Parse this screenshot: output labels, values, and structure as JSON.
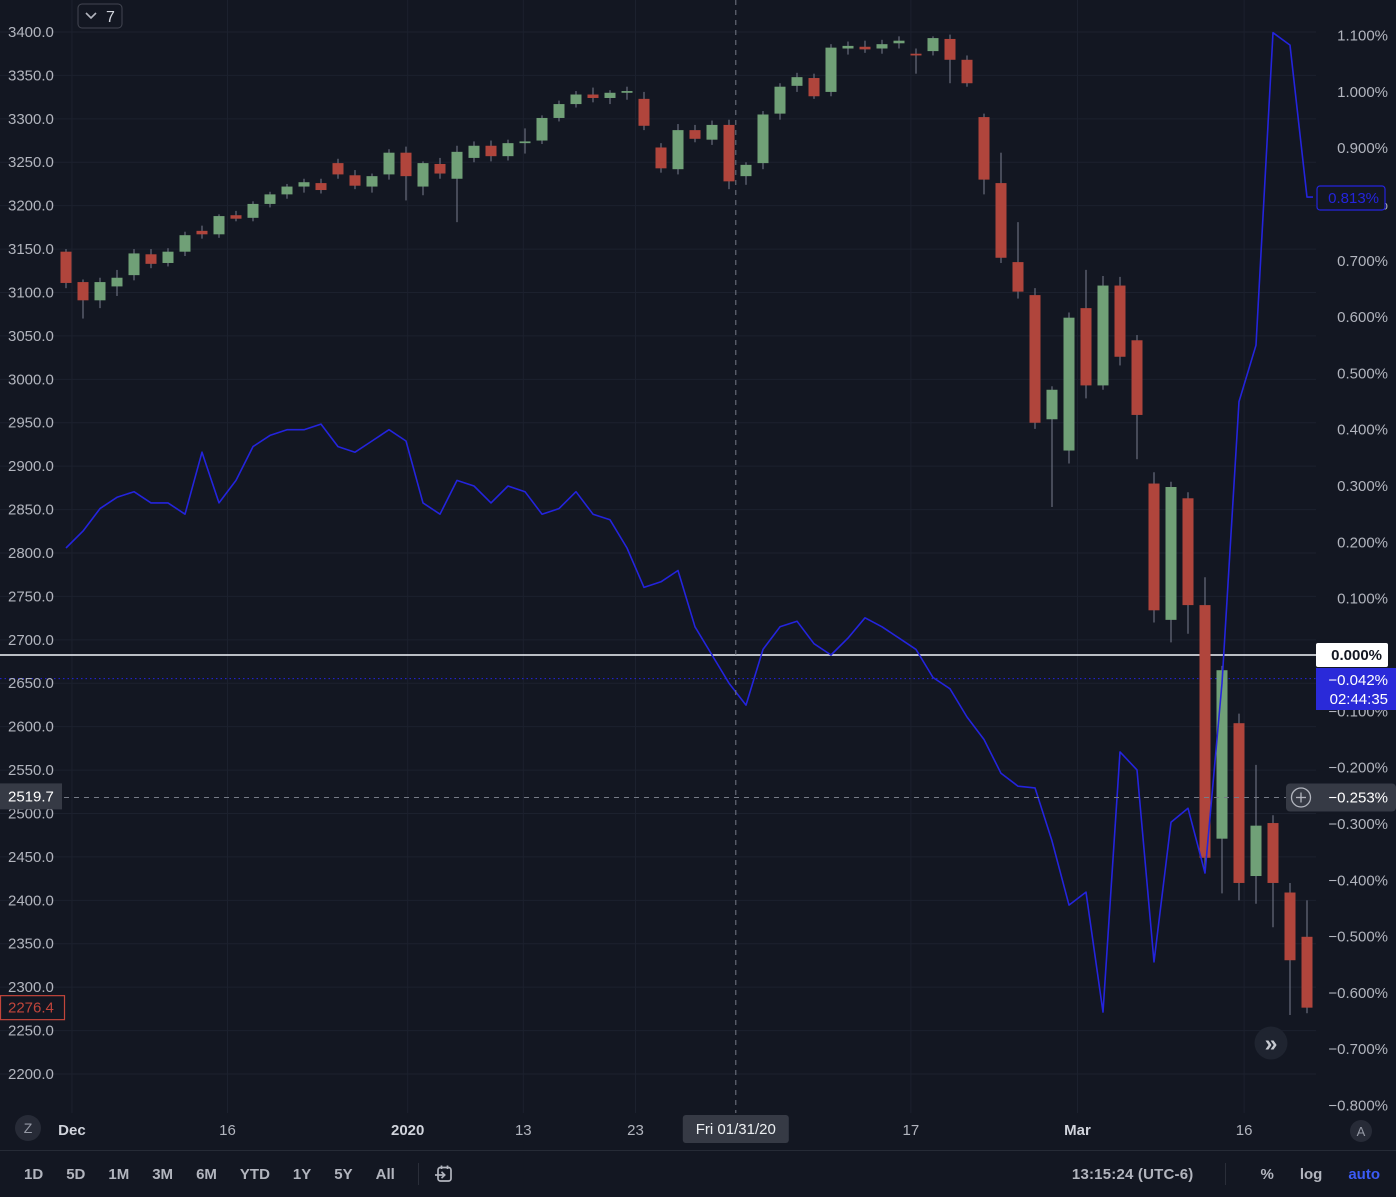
{
  "interval_button": {
    "value": "7"
  },
  "badges": {
    "left": "Z",
    "right": "A"
  },
  "toolbar": {
    "ranges": [
      "1D",
      "5D",
      "1M",
      "3M",
      "6M",
      "YTD",
      "1Y",
      "5Y",
      "All"
    ],
    "clock": "13:15:24 (UTC-6)",
    "percent_label": "%",
    "log_label": "log",
    "auto_label": "auto"
  },
  "chart_data": {
    "type": "candlestick+line",
    "title": "",
    "legend_position": "none",
    "grid": true,
    "price_axis": {
      "side": "left",
      "min": 2200,
      "max": 3400,
      "step": 50,
      "labels": [
        "3400.0",
        "3350.0",
        "3300.0",
        "3250.0",
        "3200.0",
        "3150.0",
        "3100.0",
        "3050.0",
        "3000.0",
        "2950.0",
        "2900.0",
        "2850.0",
        "2800.0",
        "2750.0",
        "2700.0",
        "2650.0",
        "2600.0",
        "2550.0",
        "2500.0",
        "2450.0",
        "2400.0",
        "2350.0",
        "2300.0",
        "2250.0",
        "2200.0"
      ]
    },
    "percent_axis": {
      "side": "right",
      "min": -0.8,
      "max": 1.1,
      "step": 0.1,
      "labels": [
        "1.100%",
        "1.000%",
        "0.900%",
        "0.800%",
        "0.700%",
        "0.600%",
        "0.500%",
        "0.400%",
        "0.300%",
        "0.200%",
        "0.100%",
        "0.000%",
        "−0.100%",
        "−0.200%",
        "−0.300%",
        "−0.400%",
        "−0.500%",
        "−0.600%",
        "−0.700%",
        "−0.800%"
      ]
    },
    "time_ticks": [
      {
        "label": "Dec",
        "index": 0.35,
        "emphasis": true
      },
      {
        "label": "16",
        "index": 9.5,
        "emphasis": false
      },
      {
        "label": "2020",
        "index": 20.1,
        "emphasis": true
      },
      {
        "label": "13",
        "index": 26.9,
        "emphasis": false
      },
      {
        "label": "23",
        "index": 33.5,
        "emphasis": false
      },
      {
        "label": "17",
        "index": 49.7,
        "emphasis": false
      },
      {
        "label": "Mar",
        "index": 59.5,
        "emphasis": true
      },
      {
        "label": "16",
        "index": 69.3,
        "emphasis": false
      }
    ],
    "candles": [
      [
        3147,
        3150,
        3105,
        3111
      ],
      [
        3112,
        3115,
        3070,
        3091
      ],
      [
        3091,
        3117,
        3082,
        3112
      ],
      [
        3107,
        3126,
        3096,
        3117
      ],
      [
        3120,
        3150,
        3114,
        3145
      ],
      [
        3144,
        3150,
        3128,
        3133
      ],
      [
        3134,
        3151,
        3130,
        3147
      ],
      [
        3147,
        3170,
        3142,
        3166
      ],
      [
        3171,
        3177,
        3162,
        3167
      ],
      [
        3167,
        3190,
        3163,
        3188
      ],
      [
        3189,
        3194,
        3182,
        3185
      ],
      [
        3186,
        3205,
        3182,
        3202
      ],
      [
        3202,
        3216,
        3198,
        3213
      ],
      [
        3213,
        3225,
        3208,
        3222
      ],
      [
        3222,
        3231,
        3215,
        3227
      ],
      [
        3226,
        3231,
        3214,
        3218
      ],
      [
        3249,
        3254,
        3231,
        3236
      ],
      [
        3235,
        3241,
        3219,
        3223
      ],
      [
        3222,
        3237,
        3215,
        3234
      ],
      [
        3236,
        3265,
        3230,
        3261
      ],
      [
        3261,
        3268,
        3206,
        3234
      ],
      [
        3222,
        3251,
        3212,
        3249
      ],
      [
        3248,
        3255,
        3231,
        3237
      ],
      [
        3231,
        3269,
        3181,
        3262
      ],
      [
        3255,
        3274,
        3250,
        3269
      ],
      [
        3269,
        3275,
        3251,
        3257
      ],
      [
        3257,
        3276,
        3252,
        3272
      ],
      [
        3272,
        3289,
        3260,
        3274
      ],
      [
        3275,
        3304,
        3271,
        3301
      ],
      [
        3301,
        3321,
        3297,
        3317
      ],
      [
        3317,
        3332,
        3313,
        3328
      ],
      [
        3328,
        3336,
        3319,
        3324
      ],
      [
        3324,
        3333,
        3317,
        3330
      ],
      [
        3330,
        3337,
        3322,
        3332
      ],
      [
        3323,
        3331,
        3287,
        3292
      ],
      [
        3267,
        3272,
        3238,
        3243
      ],
      [
        3242,
        3294,
        3236,
        3287
      ],
      [
        3287,
        3293,
        3273,
        3277
      ],
      [
        3276,
        3298,
        3270,
        3293
      ],
      [
        3293,
        3299,
        3219,
        3228
      ],
      [
        3234,
        3250,
        3224,
        3247
      ],
      [
        3249,
        3309,
        3242,
        3305
      ],
      [
        3306,
        3341,
        3299,
        3337
      ],
      [
        3338,
        3353,
        3331,
        3348
      ],
      [
        3347,
        3352,
        3323,
        3326
      ],
      [
        3331,
        3386,
        3326,
        3382
      ],
      [
        3381,
        3389,
        3374,
        3384
      ],
      [
        3383,
        3390,
        3376,
        3380
      ],
      [
        3381,
        3391,
        3375,
        3386
      ],
      [
        3387,
        3395,
        3381,
        3390
      ],
      [
        3375,
        3381,
        3352,
        3373
      ],
      [
        3378,
        3395,
        3373,
        3393
      ],
      [
        3392,
        3397,
        3341,
        3368
      ],
      [
        3368,
        3373,
        3337,
        3341
      ],
      [
        3302,
        3306,
        3213,
        3230
      ],
      [
        3226,
        3261,
        3134,
        3140
      ],
      [
        3135,
        3181,
        3093,
        3101
      ],
      [
        3097,
        3105,
        2943,
        2950
      ],
      [
        2954,
        2992,
        2853,
        2988
      ],
      [
        2918,
        3077,
        2903,
        3071
      ],
      [
        3082,
        3126,
        2978,
        2993
      ],
      [
        2993,
        3119,
        2988,
        3108
      ],
      [
        3108,
        3118,
        3016,
        3026
      ],
      [
        3045,
        3051,
        2908,
        2959
      ],
      [
        2880,
        2893,
        2720,
        2734
      ],
      [
        2723,
        2882,
        2697,
        2876
      ],
      [
        2863,
        2870,
        2707,
        2740
      ],
      [
        2740,
        2772,
        2435,
        2449
      ],
      [
        2471,
        2670,
        2408,
        2665
      ],
      [
        2604,
        2615,
        2400,
        2420
      ],
      [
        2428,
        2556,
        2396,
        2486
      ],
      [
        2489,
        2498,
        2369,
        2420
      ],
      [
        2409,
        2420,
        2268,
        2331
      ],
      [
        2358,
        2400,
        2270,
        2276.4
      ]
    ],
    "blue_line_percent": [
      0.19,
      0.22,
      0.26,
      0.28,
      0.29,
      0.27,
      0.27,
      0.25,
      0.36,
      0.27,
      0.31,
      0.37,
      0.39,
      0.4,
      0.4,
      0.41,
      0.37,
      0.36,
      0.38,
      0.4,
      0.38,
      0.27,
      0.25,
      0.31,
      0.3,
      0.27,
      0.3,
      0.29,
      0.25,
      0.26,
      0.29,
      0.25,
      0.24,
      0.19,
      0.12,
      0.13,
      0.15,
      0.05,
      0.0,
      -0.05,
      -0.089,
      0.01,
      0.05,
      0.06,
      0.02,
      0.0,
      0.03,
      0.066,
      0.05,
      0.03,
      0.01,
      -0.04,
      -0.06,
      -0.11,
      -0.15,
      -0.21,
      -0.233,
      -0.236,
      -0.33,
      -0.444,
      -0.421,
      -0.634,
      -0.172,
      -0.204,
      -0.545,
      -0.297,
      -0.272,
      -0.387,
      -0.05,
      0.45,
      0.55,
      1.105,
      1.083,
      0.813
    ],
    "baseline": {
      "value": 0,
      "label": "0.000%"
    },
    "blue_dotted_level": {
      "value": -0.042,
      "label": "−0.042%",
      "countdown": "02:44:35"
    },
    "blue_line_last": {
      "value": 0.813,
      "label": "0.813%"
    },
    "last_price": {
      "value": 2276.4,
      "label": "2276.4",
      "direction": "down"
    },
    "crosshair": {
      "bar_index": 39.4,
      "price": 2519.7,
      "price_label": "2519.7",
      "percent": -0.253,
      "percent_label": "−0.253%",
      "time_label": "Fri 01/31/20"
    },
    "pane_collapse_glyph": "»",
    "colors": {
      "background": "#131722",
      "up": "#70a077",
      "down": "#b0453c",
      "wick": "#6f7586",
      "blue_line": "#2424dd",
      "blue_pill_bg": "#2a2ad9",
      "grid": "#1c212e",
      "axis_text": "#b2b5be",
      "pill_bg": "#363a45",
      "zero_line": "#f2f5fa",
      "crosshair": "#767b86",
      "last_price_red": "#c1453b"
    }
  }
}
